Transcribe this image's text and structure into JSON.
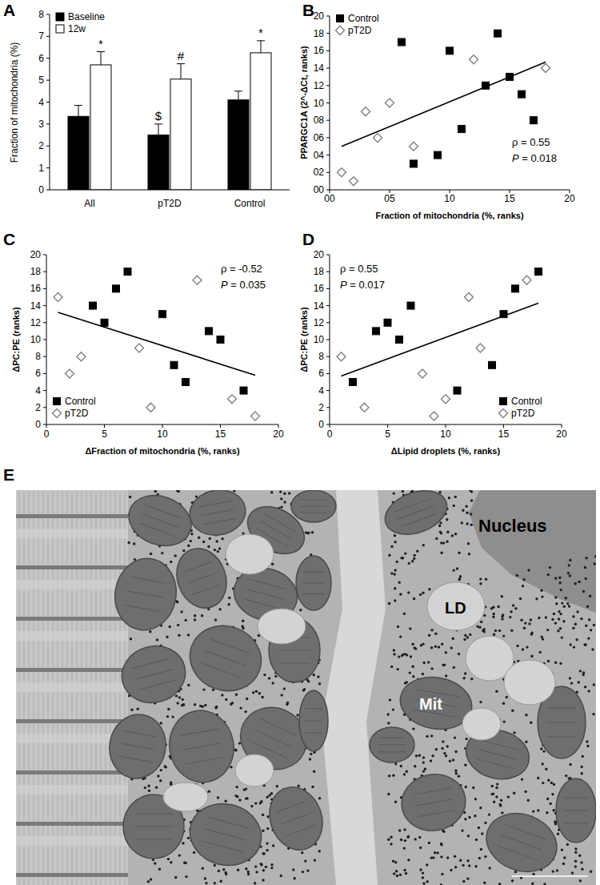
{
  "chart_data": [
    {
      "type": "bar",
      "panel": "A",
      "y_label": "Fraction of mitochondria (%)",
      "categories": [
        "All",
        "pT2D",
        "Control"
      ],
      "ylim": [
        0,
        8
      ],
      "yticks": [
        0,
        1,
        2,
        3,
        4,
        5,
        6,
        7,
        8
      ],
      "legend": "top-left",
      "series": [
        {
          "name": "Baseline",
          "color": "#000000",
          "values": [
            3.35,
            2.5,
            4.1
          ],
          "errors": [
            0.5,
            0.5,
            0.4
          ],
          "annotations": [
            null,
            "$",
            null
          ]
        },
        {
          "name": "12w",
          "color": "#ffffff",
          "values": [
            5.7,
            5.05,
            6.25
          ],
          "errors": [
            0.6,
            0.7,
            0.55
          ],
          "annotations": [
            "*",
            "#",
            "*"
          ]
        }
      ]
    },
    {
      "type": "scatter",
      "panel": "B",
      "x_label": "Fraction of mitochondria (%, ranks)",
      "y_label": "PPARGC1A (2^-ΔCt, ranks)",
      "xlim": [
        0,
        20
      ],
      "ylim": [
        0,
        20
      ],
      "xticks": [
        {
          "value": 0,
          "label": "00"
        },
        {
          "value": 5,
          "label": "05"
        },
        {
          "value": 10,
          "label": "10"
        },
        {
          "value": 15,
          "label": "15"
        },
        {
          "value": 20,
          "label": "20"
        }
      ],
      "yticks": [
        {
          "value": 0,
          "label": "00"
        },
        {
          "value": 2,
          "label": "02"
        },
        {
          "value": 4,
          "label": "04"
        },
        {
          "value": 6,
          "label": "06"
        },
        {
          "value": 8,
          "label": "08"
        },
        {
          "value": 10,
          "label": "10"
        },
        {
          "value": 12,
          "label": "12"
        },
        {
          "value": 14,
          "label": "14"
        },
        {
          "value": 16,
          "label": "16"
        },
        {
          "value": 18,
          "label": "18"
        },
        {
          "value": 20,
          "label": "20"
        }
      ],
      "legend": "top-left",
      "annotations": [
        "ρ = 0.55",
        "P = 0.018"
      ],
      "trendline": {
        "x": [
          1,
          18
        ],
        "y": [
          5,
          14.7
        ]
      },
      "series": [
        {
          "name": "Control",
          "color": "#000000",
          "marker": "square",
          "x": [
            6,
            10,
            14,
            13,
            15,
            16,
            17,
            11,
            9,
            7
          ],
          "values": [
            17,
            16,
            18,
            12,
            13,
            11,
            8,
            7,
            4,
            3
          ]
        },
        {
          "name": "pT2D",
          "color": "#808080",
          "marker": "open-diamond",
          "x": [
            12,
            18,
            5,
            3,
            4,
            7,
            1,
            2
          ],
          "values": [
            15,
            14,
            10,
            9,
            6,
            5,
            2,
            1
          ]
        }
      ]
    },
    {
      "type": "scatter",
      "panel": "C",
      "x_label": "ΔFraction of mitochondria (%, ranks)",
      "y_label": "ΔPC:PE (ranks)",
      "xlim": [
        0,
        20
      ],
      "ylim": [
        0,
        20
      ],
      "xticks": [
        0,
        5,
        10,
        15,
        20
      ],
      "yticks": [
        0,
        2,
        4,
        6,
        8,
        10,
        12,
        14,
        16,
        18,
        20
      ],
      "legend": "bottom-left",
      "annotations": [
        "ρ = -0.52",
        "P = 0.035"
      ],
      "trendline": {
        "x": [
          1,
          18
        ],
        "y": [
          13.2,
          5.8
        ]
      },
      "series": [
        {
          "name": "Control",
          "color": "#000000",
          "marker": "square",
          "x": [
            4,
            5,
            6,
            7,
            10,
            11,
            12,
            14,
            15,
            17
          ],
          "values": [
            14,
            12,
            16,
            18,
            13,
            7,
            5,
            11,
            10,
            4
          ]
        },
        {
          "name": "pT2D",
          "color": "#808080",
          "marker": "open-diamond",
          "x": [
            1,
            2,
            3,
            8,
            9,
            13,
            16,
            18
          ],
          "values": [
            15,
            6,
            8,
            9,
            2,
            17,
            3,
            1
          ]
        }
      ]
    },
    {
      "type": "scatter",
      "panel": "D",
      "x_label": "ΔLipid droplets (%, ranks)",
      "y_label": "ΔPC:PE (ranks)",
      "xlim": [
        0,
        20
      ],
      "ylim": [
        0,
        20
      ],
      "xticks": [
        0,
        5,
        10,
        15,
        20
      ],
      "yticks": [
        0,
        2,
        4,
        6,
        8,
        10,
        12,
        14,
        16,
        18,
        20
      ],
      "legend": "bottom-right",
      "annotations": [
        "ρ = 0.55",
        "P = 0.017"
      ],
      "trendline": {
        "x": [
          1,
          18
        ],
        "y": [
          5.7,
          14.3
        ]
      },
      "series": [
        {
          "name": "Control",
          "color": "#000000",
          "marker": "square",
          "x": [
            2,
            4,
            5,
            6,
            7,
            11,
            14,
            15,
            16,
            18
          ],
          "values": [
            5,
            11,
            12,
            10,
            14,
            4,
            7,
            13,
            16,
            18
          ]
        },
        {
          "name": "pT2D",
          "color": "#808080",
          "marker": "open-diamond",
          "x": [
            1,
            3,
            8,
            9,
            10,
            12,
            13,
            17
          ],
          "values": [
            8,
            2,
            6,
            1,
            3,
            15,
            9,
            17
          ]
        }
      ]
    }
  ],
  "micrograph": {
    "panel": "E",
    "labels": [
      "Nucleus",
      "LD",
      "Mit"
    ]
  }
}
